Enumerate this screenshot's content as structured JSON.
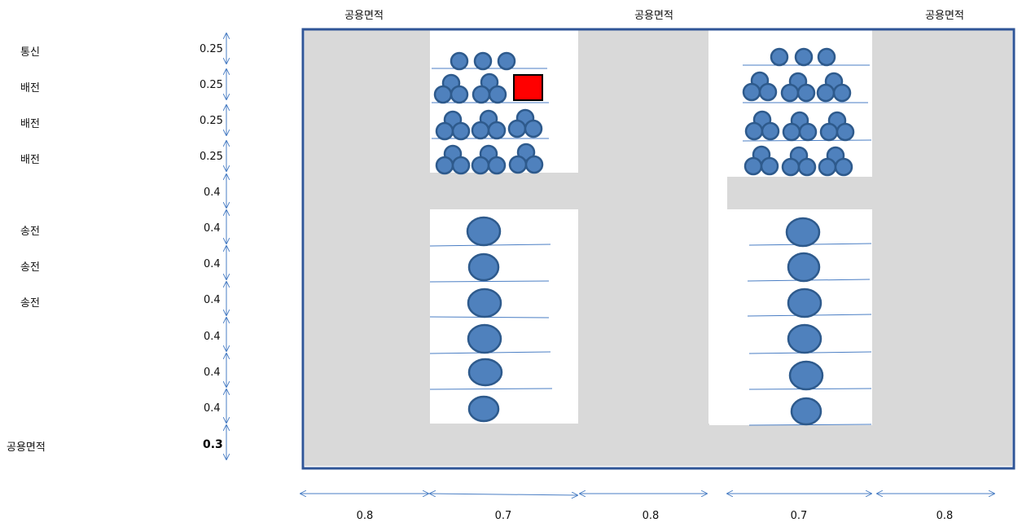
{
  "top_labels": [
    "공용면적",
    "공용면적",
    "공용면적"
  ],
  "rows": [
    {
      "name": "통신",
      "height": "0.25"
    },
    {
      "name": "배전",
      "height": "0.25"
    },
    {
      "name": "배전",
      "height": "0.25"
    },
    {
      "name": "배전",
      "height": "0.25"
    },
    {
      "name": "",
      "height": "0.4"
    },
    {
      "name": "송전",
      "height": "0.4"
    },
    {
      "name": "송전",
      "height": "0.4"
    },
    {
      "name": "송전",
      "height": "0.4"
    },
    {
      "name": "",
      "height": "0.4"
    },
    {
      "name": "",
      "height": "0.4"
    },
    {
      "name": "",
      "height": "0.4"
    },
    {
      "name": "공용면적",
      "height": "0.3"
    }
  ],
  "column_widths": [
    "0.8",
    "0.7",
    "0.8",
    "0.7",
    "0.8"
  ],
  "colors": {
    "common_area": "#d9d9d9",
    "cable": "#4f81bd",
    "cable_stroke": "#2e5a8c",
    "shelf_line": "#4a7ec4",
    "frame": "#2f5597",
    "marked_cable": "#ff0000",
    "arrow": "#4a7ec4"
  }
}
